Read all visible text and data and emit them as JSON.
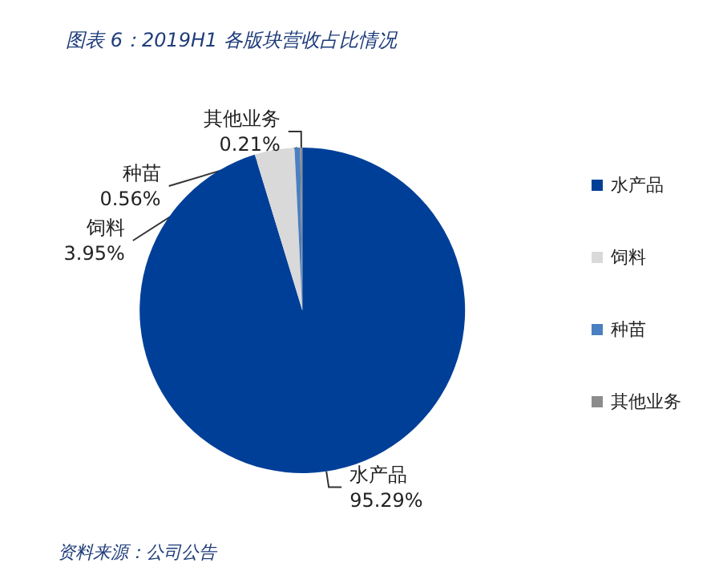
{
  "chart_data": {
    "type": "pie",
    "title": "图表 6：2019H1 各版块营收占比情况",
    "categories": [
      "水产品",
      "饲料",
      "种苗",
      "其他业务"
    ],
    "values": [
      95.29,
      3.95,
      0.56,
      0.21
    ],
    "value_labels": [
      "95.29%",
      "3.95%",
      "0.56%",
      "0.21%"
    ],
    "colors": [
      "#003f98",
      "#d9d9d9",
      "#4a7fc1",
      "#8c8c8c"
    ],
    "legend": "right",
    "annotations": [
      "资料来源：公司公告"
    ]
  }
}
